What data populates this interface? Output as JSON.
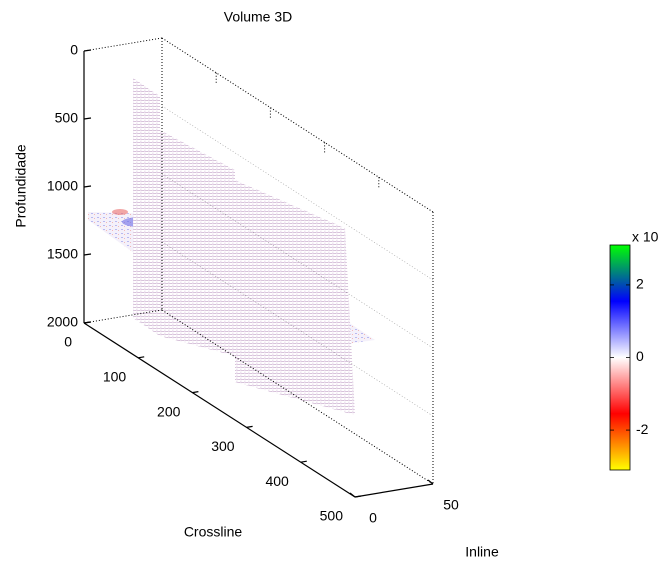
{
  "chart_data": {
    "type": "volume3d",
    "title": "Volume 3D",
    "zlabel": "Profundidade",
    "xlabel": "Crossline",
    "ylabel": "Inline",
    "zlim": [
      0,
      2000
    ],
    "zticks": [
      0,
      500,
      1000,
      1500,
      2000
    ],
    "xlim": [
      0,
      500
    ],
    "xticks": [
      0,
      100,
      200,
      300,
      400,
      500
    ],
    "ylim": [
      0,
      50
    ],
    "yticks": [
      0,
      50
    ],
    "colorbar": {
      "label": "x 10",
      "clim": [
        -3.1,
        3.1
      ],
      "ticks": [
        -2,
        0,
        2
      ],
      "colors": [
        "#ffff00",
        "#ff0000",
        "#ffffff",
        "#0000ff",
        "#00ff00"
      ]
    }
  }
}
